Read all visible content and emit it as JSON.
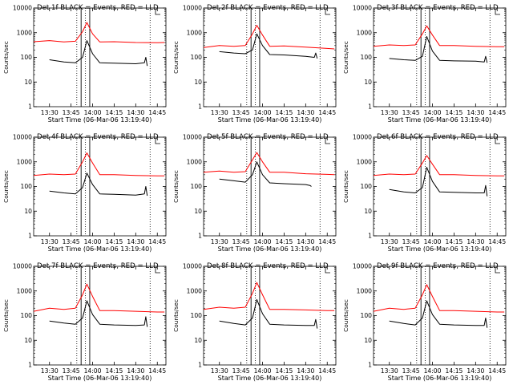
{
  "figure": {
    "x_axis_label": "Start Time (06-Mar-06 13:19:40)",
    "y_axis_label": "Counts/sec",
    "x_tick_labels": [
      "13:30",
      "13:45",
      "14:00",
      "14:15",
      "14:30",
      "14:45"
    ],
    "y_tick_labels": [
      "1",
      "10",
      "100",
      "1000",
      "10000"
    ],
    "colors": {
      "events": "#000000",
      "lld": "#ff0000",
      "axes": "#000000",
      "background": "#ffffff"
    }
  },
  "chart_data": [
    {
      "type": "line",
      "title": "Det 1f BLACK = Events, RED = LLD",
      "xlabel": "Start Time (06-Mar-06 13:19:40)",
      "ylabel": "Counts/sec",
      "y_scale": "log",
      "ylim": [
        1,
        10000
      ],
      "x_ticks": [
        "13:30",
        "13:45",
        "14:00",
        "14:15",
        "14:30",
        "14:45"
      ],
      "series": [
        {
          "name": "Events",
          "color": "#000000",
          "x": [
            "13:30",
            "13:40",
            "13:48",
            "13:53",
            "13:56",
            "14:00",
            "14:05",
            "14:15",
            "14:30",
            "14:36",
            "14:37",
            "14:38"
          ],
          "values": [
            80,
            65,
            60,
            100,
            480,
            140,
            60,
            58,
            55,
            60,
            100,
            45
          ]
        },
        {
          "name": "LLD",
          "color": "#ff0000",
          "x": [
            "13:19",
            "13:30",
            "13:40",
            "13:48",
            "13:53",
            "13:56",
            "14:00",
            "14:05",
            "14:15",
            "14:30",
            "14:45",
            "14:50"
          ],
          "values": [
            430,
            480,
            420,
            450,
            1100,
            2600,
            900,
            420,
            430,
            400,
            390,
            400
          ]
        }
      ]
    },
    {
      "type": "line",
      "title": "Det 2f BLACK = Events, RED = LLD",
      "xlabel": "Start Time (06-Mar-06 13:19:40)",
      "ylabel": "Counts/sec",
      "y_scale": "log",
      "ylim": [
        1,
        10000
      ],
      "x_ticks": [
        "13:30",
        "13:45",
        "14:00",
        "14:15",
        "14:30",
        "14:45"
      ],
      "series": [
        {
          "name": "Events",
          "color": "#000000",
          "x": [
            "13:30",
            "13:40",
            "13:48",
            "13:53",
            "13:56",
            "14:00",
            "14:05",
            "14:15",
            "14:30",
            "14:36",
            "14:37",
            "14:38"
          ],
          "values": [
            170,
            150,
            140,
            200,
            900,
            300,
            130,
            125,
            110,
            100,
            150,
            90
          ]
        },
        {
          "name": "LLD",
          "color": "#ff0000",
          "x": [
            "13:19",
            "13:30",
            "13:40",
            "13:48",
            "13:53",
            "13:56",
            "14:00",
            "14:05",
            "14:15",
            "14:30",
            "14:45",
            "14:50"
          ],
          "values": [
            250,
            300,
            280,
            300,
            900,
            2000,
            800,
            280,
            290,
            260,
            230,
            220
          ]
        }
      ]
    },
    {
      "type": "line",
      "title": "Det 3f BLACK = Events, RED = LLD",
      "xlabel": "Start Time (06-Mar-06 13:19:40)",
      "ylabel": "Counts/sec",
      "y_scale": "log",
      "ylim": [
        1,
        10000
      ],
      "x_ticks": [
        "13:30",
        "13:45",
        "14:00",
        "14:15",
        "14:30",
        "14:45"
      ],
      "series": [
        {
          "name": "Events",
          "color": "#000000",
          "x": [
            "13:30",
            "13:40",
            "13:48",
            "13:53",
            "13:56",
            "14:00",
            "14:05",
            "14:15",
            "14:30",
            "14:36",
            "14:37",
            "14:38"
          ],
          "values": [
            90,
            80,
            75,
            110,
            700,
            180,
            75,
            72,
            70,
            65,
            110,
            60
          ]
        },
        {
          "name": "LLD",
          "color": "#ff0000",
          "x": [
            "13:19",
            "13:30",
            "13:40",
            "13:48",
            "13:53",
            "13:56",
            "14:00",
            "14:05",
            "14:15",
            "14:30",
            "14:45",
            "14:50"
          ],
          "values": [
            280,
            320,
            300,
            320,
            900,
            1900,
            800,
            300,
            300,
            280,
            270,
            270
          ]
        }
      ]
    },
    {
      "type": "line",
      "title": "Det 4f BLACK = Events, RED = LLD",
      "xlabel": "Start Time (06-Mar-06 13:19:40)",
      "ylabel": "Counts/sec",
      "y_scale": "log",
      "ylim": [
        1,
        10000
      ],
      "x_ticks": [
        "13:30",
        "13:45",
        "14:00",
        "14:15",
        "14:30",
        "14:45"
      ],
      "series": [
        {
          "name": "Events",
          "color": "#000000",
          "x": [
            "13:30",
            "13:40",
            "13:48",
            "13:53",
            "13:56",
            "14:00",
            "14:05",
            "14:15",
            "14:30",
            "14:36",
            "14:37",
            "14:38"
          ],
          "values": [
            65,
            55,
            50,
            90,
            350,
            120,
            50,
            48,
            45,
            50,
            100,
            42
          ]
        },
        {
          "name": "LLD",
          "color": "#ff0000",
          "x": [
            "13:19",
            "13:30",
            "13:40",
            "13:48",
            "13:53",
            "13:56",
            "14:00",
            "14:05",
            "14:15",
            "14:30",
            "14:45",
            "14:50"
          ],
          "values": [
            280,
            320,
            300,
            320,
            1000,
            2300,
            900,
            300,
            300,
            280,
            270,
            270
          ]
        }
      ]
    },
    {
      "type": "line",
      "title": "Det 5f BLACK = Events, RED = LLD",
      "xlabel": "Start Time (06-Mar-06 13:19:40)",
      "ylabel": "Counts/sec",
      "y_scale": "log",
      "ylim": [
        1,
        10000
      ],
      "x_ticks": [
        "13:30",
        "13:45",
        "14:00",
        "14:15",
        "14:30",
        "14:45"
      ],
      "series": [
        {
          "name": "Events",
          "color": "#000000",
          "x": [
            "13:30",
            "13:40",
            "13:48",
            "13:53",
            "13:56",
            "14:00",
            "14:05",
            "14:15",
            "14:30",
            "14:33",
            "14:34"
          ],
          "values": [
            200,
            170,
            150,
            300,
            1000,
            300,
            140,
            130,
            120,
            110,
            100
          ]
        },
        {
          "name": "LLD",
          "color": "#ff0000",
          "x": [
            "13:19",
            "13:30",
            "13:40",
            "13:48",
            "13:53",
            "13:56",
            "14:00",
            "14:05",
            "14:15",
            "14:30",
            "14:45",
            "14:50"
          ],
          "values": [
            380,
            420,
            380,
            400,
            1200,
            2400,
            1000,
            380,
            380,
            330,
            310,
            300
          ]
        }
      ]
    },
    {
      "type": "line",
      "title": "Det 6f BLACK = Events, RED = LLD",
      "xlabel": "Start Time (06-Mar-06 13:19:40)",
      "ylabel": "Counts/sec",
      "y_scale": "log",
      "ylim": [
        1,
        10000
      ],
      "x_ticks": [
        "13:30",
        "13:45",
        "14:00",
        "14:15",
        "14:30",
        "14:45"
      ],
      "series": [
        {
          "name": "Events",
          "color": "#000000",
          "x": [
            "13:30",
            "13:40",
            "13:48",
            "13:53",
            "13:56",
            "14:00",
            "14:05",
            "14:15",
            "14:30",
            "14:36",
            "14:37",
            "14:38"
          ],
          "values": [
            75,
            60,
            55,
            90,
            600,
            160,
            60,
            58,
            55,
            55,
            110,
            40
          ]
        },
        {
          "name": "LLD",
          "color": "#ff0000",
          "x": [
            "13:19",
            "13:30",
            "13:40",
            "13:48",
            "13:53",
            "13:56",
            "14:00",
            "14:05",
            "14:15",
            "14:30",
            "14:45",
            "14:50"
          ],
          "values": [
            280,
            320,
            300,
            320,
            900,
            1800,
            800,
            300,
            300,
            280,
            270,
            270
          ]
        }
      ]
    },
    {
      "type": "line",
      "title": "Det 7f BLACK = Events, RED = LLD",
      "xlabel": "Start Time (06-Mar-06 13:19:40)",
      "ylabel": "Counts/sec",
      "y_scale": "log",
      "ylim": [
        1,
        10000
      ],
      "x_ticks": [
        "13:30",
        "13:45",
        "14:00",
        "14:15",
        "14:30",
        "14:45"
      ],
      "series": [
        {
          "name": "Events",
          "color": "#000000",
          "x": [
            "13:30",
            "13:40",
            "13:48",
            "13:53",
            "13:56",
            "14:00",
            "14:05",
            "14:15",
            "14:30",
            "14:36",
            "14:37",
            "14:38"
          ],
          "values": [
            60,
            50,
            45,
            80,
            400,
            110,
            45,
            42,
            40,
            42,
            90,
            35
          ]
        },
        {
          "name": "LLD",
          "color": "#ff0000",
          "x": [
            "13:19",
            "13:30",
            "13:40",
            "13:48",
            "13:53",
            "13:56",
            "14:00",
            "14:05",
            "14:15",
            "14:30",
            "14:45",
            "14:50"
          ],
          "values": [
            150,
            200,
            180,
            200,
            700,
            1900,
            600,
            160,
            160,
            150,
            140,
            140
          ]
        }
      ]
    },
    {
      "type": "line",
      "title": "Det 8f BLACK = Events, RED = LLD",
      "xlabel": "Start Time (06-Mar-06 13:19:40)",
      "ylabel": "Counts/sec",
      "y_scale": "log",
      "ylim": [
        1,
        10000
      ],
      "x_ticks": [
        "13:30",
        "13:45",
        "14:00",
        "14:15",
        "14:30",
        "14:45"
      ],
      "series": [
        {
          "name": "Events",
          "color": "#000000",
          "x": [
            "13:30",
            "13:40",
            "13:48",
            "13:53",
            "13:56",
            "14:00",
            "14:05",
            "14:15",
            "14:30",
            "14:36",
            "14:37",
            "14:38"
          ],
          "values": [
            60,
            48,
            42,
            80,
            450,
            120,
            45,
            42,
            40,
            40,
            70,
            30
          ]
        },
        {
          "name": "LLD",
          "color": "#ff0000",
          "x": [
            "13:19",
            "13:30",
            "13:40",
            "13:48",
            "13:53",
            "13:56",
            "14:00",
            "14:05",
            "14:15",
            "14:30",
            "14:45",
            "14:50"
          ],
          "values": [
            180,
            220,
            200,
            220,
            800,
            2200,
            700,
            180,
            180,
            170,
            160,
            160
          ]
        }
      ]
    },
    {
      "type": "line",
      "title": "Det 9f BLACK = Events, RED = LLD",
      "xlabel": "Start Time (06-Mar-06 13:19:40)",
      "ylabel": "Counts/sec",
      "y_scale": "log",
      "ylim": [
        1,
        10000
      ],
      "x_ticks": [
        "13:30",
        "13:45",
        "14:00",
        "14:15",
        "14:30",
        "14:45"
      ],
      "series": [
        {
          "name": "Events",
          "color": "#000000",
          "x": [
            "13:30",
            "13:40",
            "13:48",
            "13:53",
            "13:56",
            "14:00",
            "14:05",
            "14:15",
            "14:30",
            "14:36",
            "14:37",
            "14:38"
          ],
          "values": [
            60,
            48,
            42,
            80,
            400,
            110,
            45,
            42,
            40,
            40,
            80,
            32
          ]
        },
        {
          "name": "LLD",
          "color": "#ff0000",
          "x": [
            "13:19",
            "13:30",
            "13:40",
            "13:48",
            "13:53",
            "13:56",
            "14:00",
            "14:05",
            "14:15",
            "14:30",
            "14:45",
            "14:50"
          ],
          "values": [
            150,
            200,
            180,
            200,
            700,
            1800,
            600,
            160,
            160,
            150,
            140,
            140
          ]
        }
      ]
    }
  ]
}
